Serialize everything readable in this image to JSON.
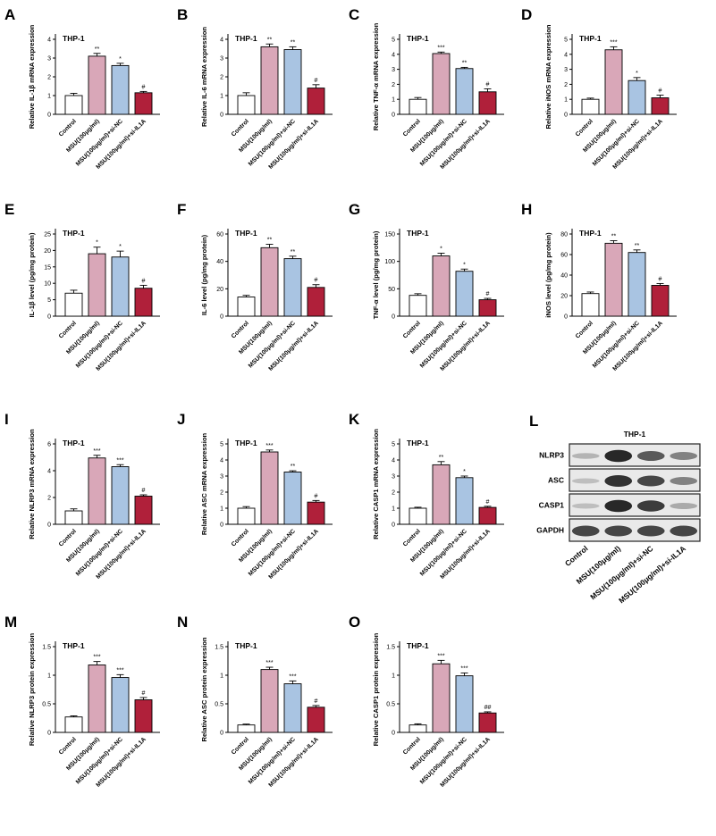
{
  "colors": {
    "control": "#ffffff",
    "msu": "#d9a7b8",
    "si_nc": "#a9c4e2",
    "si_il1a": "#b0203a",
    "axis": "#000000"
  },
  "chart_data": [
    {
      "panel": "A",
      "type": "bar",
      "title": "THP-1",
      "ylabel": "Relative IL-1β mRNA expression",
      "ylim": [
        0,
        4
      ],
      "yticks": [
        0,
        1,
        2,
        3,
        4
      ],
      "categories": [
        "Control",
        "MSU(100μg/ml)",
        "MSU(100μg/ml)+si-NC",
        "MSU(100μg/ml)+si-IL1A"
      ],
      "values": [
        1.0,
        3.1,
        2.6,
        1.15
      ],
      "errors": [
        0.12,
        0.15,
        0.12,
        0.07
      ],
      "annotations": [
        "",
        "**",
        "*",
        "#"
      ]
    },
    {
      "panel": "B",
      "type": "bar",
      "title": "THP-1",
      "ylabel": "Relative IL-6 mRNA expression",
      "ylim": [
        0,
        4
      ],
      "yticks": [
        0,
        1,
        2,
        3,
        4
      ],
      "categories": [
        "Control",
        "MSU(100μg/ml)",
        "MSU(100μg/ml)+si-NC",
        "MSU(100μg/ml)+si-IL1A"
      ],
      "values": [
        1.0,
        3.6,
        3.45,
        1.4
      ],
      "errors": [
        0.15,
        0.15,
        0.15,
        0.18
      ],
      "annotations": [
        "",
        "**",
        "**",
        "#"
      ]
    },
    {
      "panel": "C",
      "type": "bar",
      "title": "THP-1",
      "ylabel": "Relative TNF-α mRNA expression",
      "ylim": [
        0,
        5
      ],
      "yticks": [
        0,
        1,
        2,
        3,
        4,
        5
      ],
      "categories": [
        "Control",
        "MSU(100μg/ml)",
        "MSU(100μg/ml)+si-NC",
        "MSU(100μg/ml)+si-IL1A"
      ],
      "values": [
        1.0,
        4.05,
        3.05,
        1.5
      ],
      "errors": [
        0.12,
        0.1,
        0.08,
        0.2
      ],
      "annotations": [
        "",
        "***",
        "**",
        "#"
      ]
    },
    {
      "panel": "D",
      "type": "bar",
      "title": "THP-1",
      "ylabel": "Relative iNOS mRNA expression",
      "ylim": [
        0,
        5
      ],
      "yticks": [
        0,
        1,
        2,
        3,
        4,
        5
      ],
      "categories": [
        "Control",
        "MSU(100μg/ml)",
        "MSU(100μg/ml)+si-NC",
        "MSU(100μg/ml)+si-IL1A"
      ],
      "values": [
        1.0,
        4.3,
        2.25,
        1.1
      ],
      "errors": [
        0.08,
        0.2,
        0.2,
        0.18
      ],
      "annotations": [
        "",
        "***",
        "*",
        "#"
      ]
    },
    {
      "panel": "E",
      "type": "bar",
      "title": "THP-1",
      "ylabel": "IL-1β level (pg/mg protein)",
      "ylim": [
        0,
        25
      ],
      "yticks": [
        0,
        5,
        10,
        15,
        20,
        25
      ],
      "categories": [
        "Control",
        "MSU(100μg/ml)",
        "MSU(100μg/ml)+si-NC",
        "MSU(100μg/ml)+si-IL1A"
      ],
      "values": [
        7.0,
        19.0,
        18.0,
        8.5
      ],
      "errors": [
        0.9,
        2.0,
        1.8,
        0.9
      ],
      "annotations": [
        "",
        "*",
        "*",
        "#"
      ]
    },
    {
      "panel": "F",
      "type": "bar",
      "title": "THP-1",
      "ylabel": "IL-6 level (pg/mg protein)",
      "ylim": [
        0,
        60
      ],
      "yticks": [
        0,
        20,
        40,
        60
      ],
      "categories": [
        "Control",
        "MSU(100μg/ml)",
        "MSU(100μg/ml)+si-NC",
        "MSU(100μg/ml)+si-IL1A"
      ],
      "values": [
        14.0,
        50.0,
        42.0,
        21.0
      ],
      "errors": [
        1.2,
        2.5,
        1.8,
        2.0
      ],
      "annotations": [
        "",
        "**",
        "**",
        "#"
      ]
    },
    {
      "panel": "G",
      "type": "bar",
      "title": "THP-1",
      "ylabel": "TNF-α level (pg/mg protein)",
      "ylim": [
        0,
        150
      ],
      "yticks": [
        0,
        50,
        100,
        150
      ],
      "categories": [
        "Control",
        "MSU(100μg/ml)",
        "MSU(100μg/ml)+si-NC",
        "MSU(100μg/ml)+si-IL1A"
      ],
      "values": [
        38.0,
        110.0,
        82.0,
        30.0
      ],
      "errors": [
        3.0,
        5.0,
        4.0,
        2.5
      ],
      "annotations": [
        "",
        "*",
        "*",
        "#"
      ]
    },
    {
      "panel": "H",
      "type": "bar",
      "title": "THP-1",
      "ylabel": "iNOS level (pg/mg protein)",
      "ylim": [
        0,
        80
      ],
      "yticks": [
        0,
        20,
        40,
        60,
        80
      ],
      "categories": [
        "Control",
        "MSU(100μg/ml)",
        "MSU(100μg/ml)+si-NC",
        "MSU(100μg/ml)+si-IL1A"
      ],
      "values": [
        22.0,
        71.0,
        62.0,
        30.0
      ],
      "errors": [
        1.5,
        2.5,
        2.5,
        1.8
      ],
      "annotations": [
        "",
        "**",
        "**",
        "#"
      ]
    },
    {
      "panel": "I",
      "type": "bar",
      "title": "THP-1",
      "ylabel": "Relative NLRP3 mRNA expression",
      "ylim": [
        0,
        6
      ],
      "yticks": [
        0,
        2,
        4,
        6
      ],
      "categories": [
        "Control",
        "MSU(100μg/ml)",
        "MSU(100μg/ml)+si-NC",
        "MSU(100μg/ml)+si-IL1A"
      ],
      "values": [
        1.0,
        4.95,
        4.3,
        2.1
      ],
      "errors": [
        0.15,
        0.2,
        0.15,
        0.1
      ],
      "annotations": [
        "",
        "***",
        "***",
        "#"
      ]
    },
    {
      "panel": "J",
      "type": "bar",
      "title": "THP-1",
      "ylabel": "Relative ASC mRNA expression",
      "ylim": [
        0,
        5
      ],
      "yticks": [
        0,
        1,
        2,
        3,
        4,
        5
      ],
      "categories": [
        "Control",
        "MSU(100μg/ml)",
        "MSU(100μg/ml)+si-NC",
        "MSU(100μg/ml)+si-IL1A"
      ],
      "values": [
        1.0,
        4.5,
        3.25,
        1.38
      ],
      "errors": [
        0.1,
        0.12,
        0.08,
        0.1
      ],
      "annotations": [
        "",
        "***",
        "**",
        "#"
      ]
    },
    {
      "panel": "K",
      "type": "bar",
      "title": "THP-1",
      "ylabel": "Relative CASP1 mRNA expression",
      "ylim": [
        0,
        5
      ],
      "yticks": [
        0,
        1,
        2,
        3,
        4,
        5
      ],
      "categories": [
        "Control",
        "MSU(100μg/ml)",
        "MSU(100μg/ml)+si-NC",
        "MSU(100μg/ml)+si-IL1A"
      ],
      "values": [
        1.0,
        3.7,
        2.9,
        1.05
      ],
      "errors": [
        0.06,
        0.2,
        0.1,
        0.07
      ],
      "annotations": [
        "",
        "**",
        "*",
        "#"
      ]
    },
    {
      "panel": "M",
      "type": "bar",
      "title": "THP-1",
      "ylabel": "Relative NLRP3 protein expression",
      "ylim": [
        0,
        1.5
      ],
      "yticks": [
        0.0,
        0.5,
        1.0,
        1.5
      ],
      "categories": [
        "Control",
        "MSU(100μg/ml)",
        "MSU(100μg/ml)+si-NC",
        "MSU(100μg/ml)+si-IL1A"
      ],
      "values": [
        0.27,
        1.18,
        0.96,
        0.57
      ],
      "errors": [
        0.02,
        0.06,
        0.05,
        0.04
      ],
      "annotations": [
        "",
        "***",
        "***",
        "#"
      ]
    },
    {
      "panel": "N",
      "type": "bar",
      "title": "THP-1",
      "ylabel": "Relative ASC protein expression",
      "ylim": [
        0,
        1.5
      ],
      "yticks": [
        0.0,
        0.5,
        1.0,
        1.5
      ],
      "categories": [
        "Control",
        "MSU(100μg/ml)",
        "MSU(100μg/ml)+si-NC",
        "MSU(100μg/ml)+si-IL1A"
      ],
      "values": [
        0.13,
        1.1,
        0.85,
        0.44
      ],
      "errors": [
        0.015,
        0.04,
        0.05,
        0.03
      ],
      "annotations": [
        "",
        "***",
        "***",
        "#"
      ]
    },
    {
      "panel": "O",
      "type": "bar",
      "title": "THP-1",
      "ylabel": "Relative CASP1 protein expression",
      "ylim": [
        0,
        1.5
      ],
      "yticks": [
        0.0,
        0.5,
        1.0,
        1.5
      ],
      "categories": [
        "Control",
        "MSU(100μg/ml)",
        "MSU(100μg/ml)+si-NC",
        "MSU(100μg/ml)+si-IL1A"
      ],
      "values": [
        0.13,
        1.2,
        0.99,
        0.34
      ],
      "errors": [
        0.02,
        0.06,
        0.05,
        0.02
      ],
      "annotations": [
        "",
        "***",
        "***",
        "##"
      ]
    }
  ],
  "blot": {
    "panel": "L",
    "title": "THP-1",
    "rows": [
      "NLRP3",
      "ASC",
      "CASP1",
      "GAPDH"
    ],
    "lanes": [
      "Control",
      "MSU(100μg/ml)",
      "MSU(100μg/ml)+si-NC",
      "MSU(100μg/ml)+si-IL1A"
    ],
    "band_intensity": [
      [
        0.25,
        0.95,
        0.7,
        0.5
      ],
      [
        0.2,
        0.9,
        0.8,
        0.5
      ],
      [
        0.2,
        0.95,
        0.85,
        0.3
      ],
      [
        0.8,
        0.8,
        0.8,
        0.8
      ]
    ]
  }
}
